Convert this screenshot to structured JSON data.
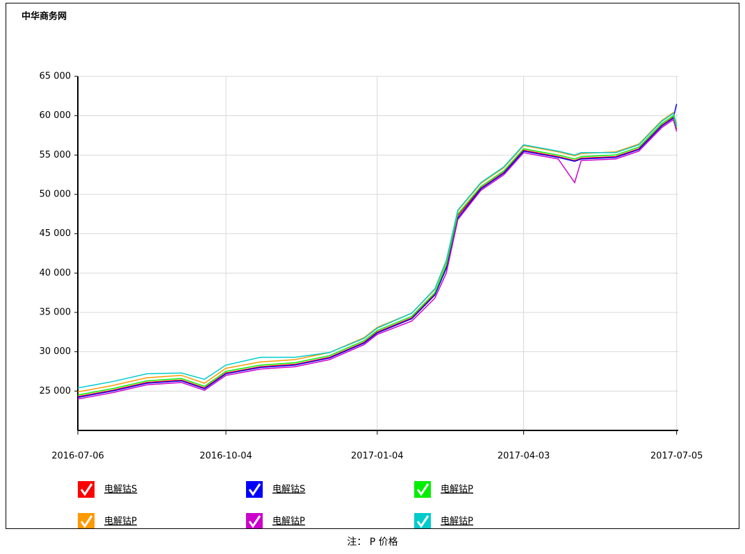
{
  "chart_data": {
    "type": "line",
    "title": "中华商务网",
    "x": [
      "2016-07-06",
      "2016-07-27",
      "2016-08-17",
      "2016-09-07",
      "2016-09-21",
      "2016-10-04",
      "2016-10-25",
      "2016-11-15",
      "2016-12-06",
      "2016-12-27",
      "2017-01-04",
      "2017-01-25",
      "2017-02-08",
      "2017-02-15",
      "2017-02-22",
      "2017-03-08",
      "2017-03-22",
      "2017-04-03",
      "2017-04-24",
      "2017-05-04",
      "2017-05-08",
      "2017-05-29",
      "2017-06-12",
      "2017-06-26",
      "2017-07-03",
      "2017-07-05"
    ],
    "series": [
      {
        "name": "电解钴S",
        "color": "#ff0000",
        "values": [
          24300,
          25100,
          26100,
          26400,
          25400,
          27300,
          28100,
          28400,
          29300,
          31200,
          32500,
          34300,
          37300,
          40800,
          47300,
          50800,
          52800,
          55600,
          54800,
          54300,
          54600,
          54800,
          55800,
          58800,
          59800,
          58300
        ]
      },
      {
        "name": "电解钴S",
        "color": "#0000ff",
        "values": [
          24200,
          25000,
          26000,
          26300,
          25300,
          27200,
          28000,
          28300,
          29200,
          31100,
          32400,
          34200,
          37200,
          40600,
          47000,
          50700,
          52700,
          55500,
          54700,
          54200,
          54500,
          54700,
          55700,
          58700,
          59700,
          61500
        ]
      },
      {
        "name": "电解钴P",
        "color": "#00ee00",
        "values": [
          24500,
          25300,
          26300,
          26600,
          25600,
          27500,
          28300,
          28600,
          29500,
          31400,
          32700,
          34500,
          37500,
          41000,
          47500,
          51000,
          53000,
          55800,
          55000,
          54500,
          54800,
          55000,
          56000,
          59000,
          60000,
          58500
        ]
      },
      {
        "name": "电解钴P",
        "color": "#ff9900",
        "values": [
          24900,
          25700,
          26700,
          27000,
          26000,
          27900,
          28700,
          29000,
          29900,
          31800,
          33100,
          34900,
          37900,
          41400,
          47900,
          51400,
          53400,
          56200,
          55400,
          54900,
          55200,
          55400,
          56400,
          59400,
          60400,
          58900
        ]
      },
      {
        "name": "电解钴P",
        "color": "#cc00cc",
        "values": [
          24000,
          24800,
          25800,
          26100,
          25100,
          27000,
          27800,
          28100,
          29000,
          30900,
          32200,
          33900,
          36800,
          40000,
          46800,
          50500,
          52500,
          55300,
          54500,
          51500,
          54300,
          54500,
          55500,
          58500,
          59500,
          58000
        ]
      },
      {
        "name": "电解钴P",
        "color": "#00cccc",
        "values": [
          25400,
          26200,
          27200,
          27300,
          26500,
          28300,
          29300,
          29300,
          29900,
          31700,
          33000,
          34900,
          38000,
          41600,
          48000,
          51500,
          53500,
          56300,
          55500,
          55000,
          55300,
          55300,
          56300,
          59300,
          60300,
          58700
        ]
      }
    ],
    "xlim": [
      "2016-07-06",
      "2017-07-06"
    ],
    "xticks": [
      "2016-07-06",
      "2016-10-04",
      "2017-01-04",
      "2017-04-03",
      "2017-07-05"
    ],
    "ylim": [
      20000,
      65000
    ],
    "yticks": [
      {
        "value": 25000,
        "label": "25 000"
      },
      {
        "value": 30000,
        "label": "30 000"
      },
      {
        "value": 35000,
        "label": "35 000"
      },
      {
        "value": 40000,
        "label": "40 000"
      },
      {
        "value": 45000,
        "label": "45 000"
      },
      {
        "value": 50000,
        "label": "50 000"
      },
      {
        "value": 55000,
        "label": "55 000"
      },
      {
        "value": 60000,
        "label": "60 000"
      },
      {
        "value": 65000,
        "label": "65 000"
      }
    ],
    "grid": true,
    "footnote": "注： P 价格"
  }
}
